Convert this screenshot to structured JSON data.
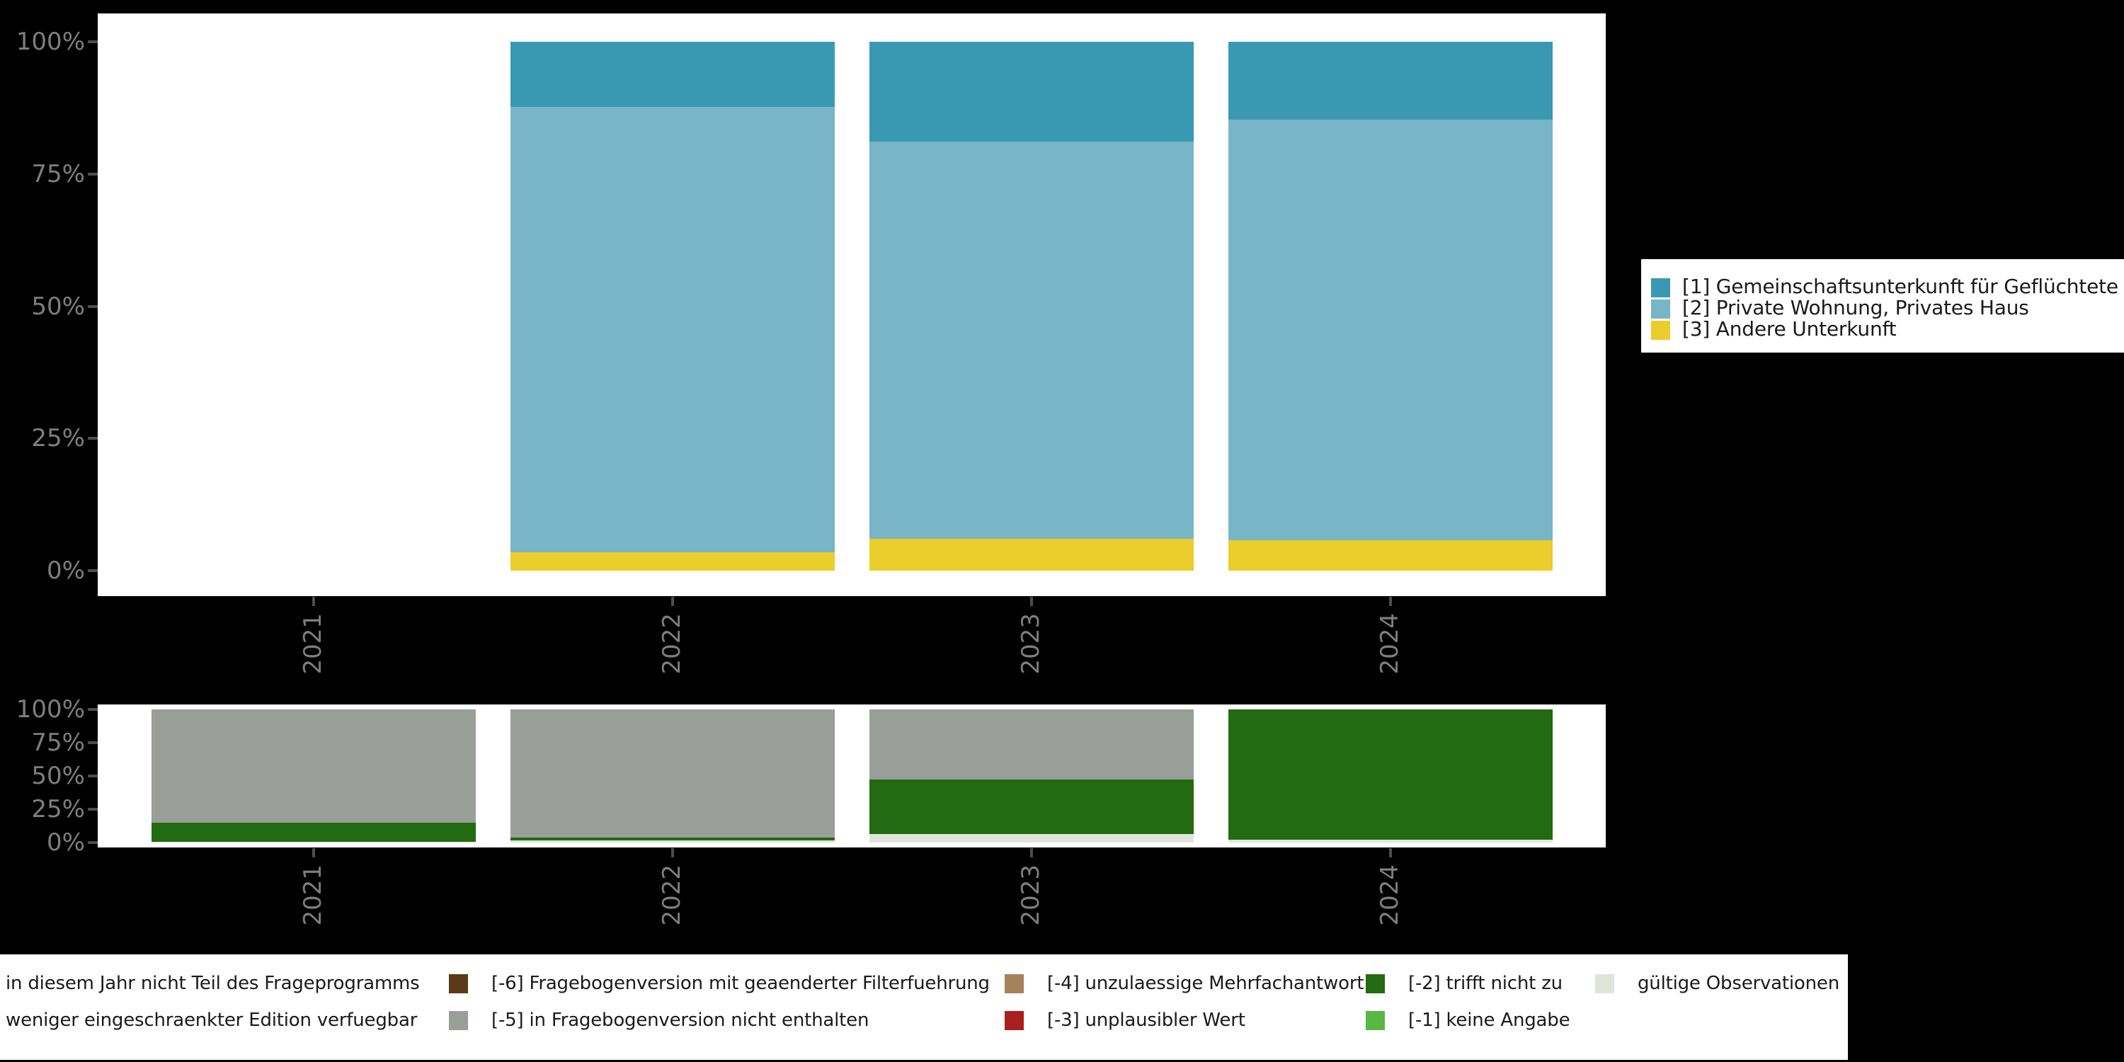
{
  "colors": {
    "background": "#000000",
    "panel": "#ffffff",
    "axis_text": "#7e7e7e",
    "tick_mark": "#4d4d4d",
    "legend_text": "#1a1a1a"
  },
  "chart_data": [
    {
      "type": "bar",
      "stacked": true,
      "title": "",
      "xlabel": "",
      "ylabel": "",
      "categories": [
        "2021",
        "2022",
        "2023",
        "2024"
      ],
      "y_ticks": [
        "0%",
        "25%",
        "50%",
        "75%",
        "100%"
      ],
      "ylim": [
        0,
        100
      ],
      "grid": false,
      "legend_position": "right",
      "note": "series listed bottom-to-top of stack; 2021 has no data",
      "series": [
        {
          "name": "[3] Andere Unterkunft",
          "color": "#ebcd2c",
          "values": [
            null,
            3.5,
            6.0,
            5.8
          ]
        },
        {
          "name": "[2] Private Wohnung, Privates Haus",
          "color": "#77b5c7",
          "values": [
            null,
            84.2,
            75.1,
            79.5
          ]
        },
        {
          "name": "[1] Gemeinschaftsunterkunft für Geflüchtete",
          "color": "#3a99b2",
          "values": [
            null,
            12.3,
            18.9,
            14.7
          ]
        }
      ]
    },
    {
      "type": "bar",
      "stacked": true,
      "title": "",
      "xlabel": "",
      "ylabel": "",
      "categories": [
        "2021",
        "2022",
        "2023",
        "2024"
      ],
      "y_ticks": [
        "0%",
        "25%",
        "50%",
        "75%",
        "100%"
      ],
      "ylim": [
        0,
        100
      ],
      "grid": false,
      "legend_position": "bottom",
      "note": "series listed bottom-to-top of stack",
      "series": [
        {
          "name": "gültige Observationen",
          "color": "#e0e5dc",
          "values": [
            0.5,
            1.4,
            6.2,
            2.1
          ]
        },
        {
          "name": "[-2] trifft nicht zu",
          "color": "#226b10",
          "values": [
            14.4,
            2.5,
            41.1,
            97.9
          ]
        },
        {
          "name": "[-5] in Fragebogenversion nicht enthalten",
          "color": "#9a9e98",
          "values": [
            85.1,
            96.1,
            52.7,
            0
          ]
        }
      ]
    }
  ],
  "top_legend": {
    "items": [
      {
        "label": "[1] Gemeinschaftsunterkunft für Geflüchtete",
        "color": "#3a99b2"
      },
      {
        "label": "[2] Private Wohnung, Privates Haus",
        "color": "#77b5c7"
      },
      {
        "label": "[3] Andere Unterkunft",
        "color": "#ebcd2c"
      }
    ]
  },
  "bottom_legend": {
    "rows": [
      [
        {
          "label": "in diesem Jahr nicht Teil des Frageprogramms",
          "color": ""
        },
        {
          "label": "[-6] Fragebogenversion mit geaenderter Filterfuehrung",
          "color": "#5a3a17"
        },
        {
          "label": "[-4] unzulaessige Mehrfachantwort",
          "color": "#a6825c"
        },
        {
          "label": "[-2] trifft nicht zu",
          "color": "#226b10"
        },
        {
          "label": "gültige Observationen",
          "color": "#e0e5dc"
        }
      ],
      [
        {
          "label": "weniger eingeschraenkter Edition verfuegbar",
          "color": ""
        },
        {
          "label": "[-5] in Fragebogenversion nicht enthalten",
          "color": "#9a9e98"
        },
        {
          "label": "[-3] unplausibler Wert",
          "color": "#a91e1e"
        },
        {
          "label": "[-1] keine Angabe",
          "color": "#59b843"
        }
      ]
    ]
  }
}
